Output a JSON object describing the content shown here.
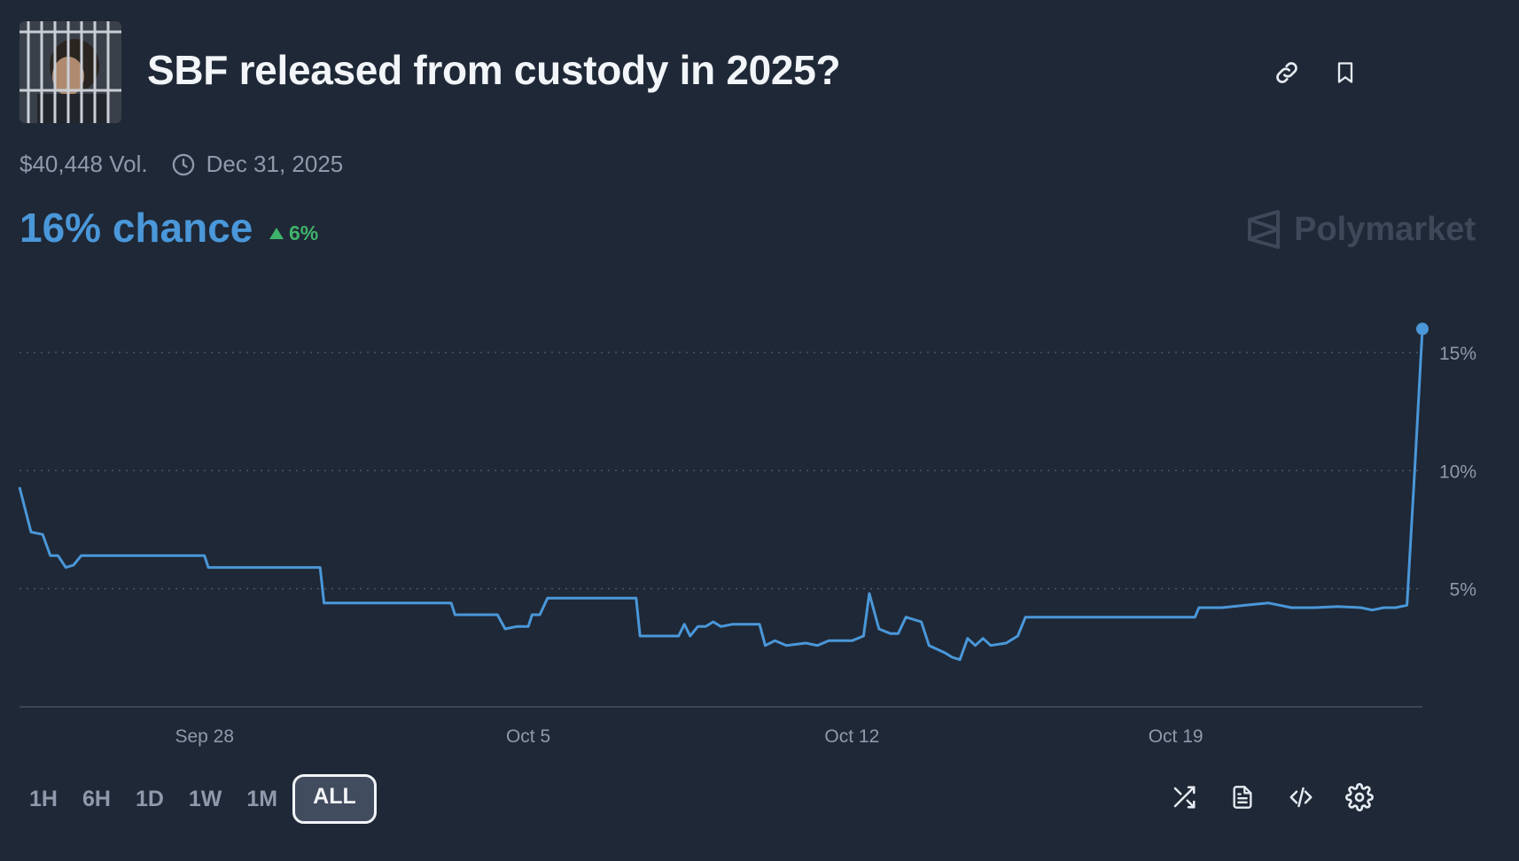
{
  "market": {
    "title": "SBF released from custody in 2025?",
    "volume": "$40,448 Vol.",
    "end_date": "Dec 31, 2025",
    "chance": "16% chance",
    "change": "6%",
    "brand": "Polymarket"
  },
  "icons": {
    "link": "link-icon",
    "bookmark": "bookmark-icon",
    "clock": "clock-icon",
    "shuffle": "shuffle-icon",
    "document": "document-icon",
    "embed": "code-icon",
    "settings": "gear-icon"
  },
  "colors": {
    "background": "#1f2836",
    "line": "#4a97d9",
    "positive": "#3fb36a",
    "muted": "#8e9aab"
  },
  "ranges": [
    {
      "label": "1H",
      "active": false
    },
    {
      "label": "6H",
      "active": false
    },
    {
      "label": "1D",
      "active": false
    },
    {
      "label": "1W",
      "active": false
    },
    {
      "label": "1M",
      "active": false
    },
    {
      "label": "ALL",
      "active": true
    }
  ],
  "chart_data": {
    "type": "line",
    "grid": true,
    "ylim": [
      0,
      17
    ],
    "y_ticks": [
      5,
      10,
      15
    ],
    "y_tick_labels": [
      "5%",
      "10%",
      "15%"
    ],
    "x_tick_labels": [
      {
        "date": "2025-09-28",
        "label": "Sep 28"
      },
      {
        "date": "2025-10-05",
        "label": "Oct 5"
      },
      {
        "date": "2025-10-12",
        "label": "Oct 12"
      },
      {
        "date": "2025-10-19",
        "label": "Oct 19"
      }
    ],
    "series": [
      {
        "points": [
          [
            "2025-09-24T00:00",
            9.3
          ],
          [
            "2025-09-24T06:00",
            7.4
          ],
          [
            "2025-09-24T12:00",
            7.3
          ],
          [
            "2025-09-24T16:00",
            6.4
          ],
          [
            "2025-09-24T20:00",
            6.4
          ],
          [
            "2025-09-25T00:00",
            5.9
          ],
          [
            "2025-09-25T04:00",
            6.0
          ],
          [
            "2025-09-25T08:00",
            6.4
          ],
          [
            "2025-09-26T00:00",
            6.4
          ],
          [
            "2025-09-27T00:00",
            6.4
          ],
          [
            "2025-09-28T00:00",
            6.4
          ],
          [
            "2025-09-28T02:00",
            5.9
          ],
          [
            "2025-09-29T00:00",
            5.9
          ],
          [
            "2025-09-30T12:00",
            5.9
          ],
          [
            "2025-09-30T14:00",
            4.4
          ],
          [
            "2025-10-01T12:00",
            4.4
          ],
          [
            "2025-10-02T12:00",
            4.4
          ],
          [
            "2025-10-03T08:00",
            4.4
          ],
          [
            "2025-10-03T10:00",
            3.9
          ],
          [
            "2025-10-04T08:00",
            3.9
          ],
          [
            "2025-10-04T12:00",
            3.3
          ],
          [
            "2025-10-04T18:00",
            3.4
          ],
          [
            "2025-10-05T00:00",
            3.4
          ],
          [
            "2025-10-05T02:00",
            3.9
          ],
          [
            "2025-10-05T06:00",
            3.9
          ],
          [
            "2025-10-05T10:00",
            4.6
          ],
          [
            "2025-10-06T12:00",
            4.6
          ],
          [
            "2025-10-07T08:00",
            4.6
          ],
          [
            "2025-10-07T10:00",
            3.0
          ],
          [
            "2025-10-08T06:00",
            3.0
          ],
          [
            "2025-10-08T09:00",
            3.5
          ],
          [
            "2025-10-08T12:00",
            3.0
          ],
          [
            "2025-10-08T16:00",
            3.4
          ],
          [
            "2025-10-08T20:00",
            3.4
          ],
          [
            "2025-10-09T00:00",
            3.6
          ],
          [
            "2025-10-09T04:00",
            3.4
          ],
          [
            "2025-10-09T10:00",
            3.5
          ],
          [
            "2025-10-09T16:00",
            3.5
          ],
          [
            "2025-10-10T00:00",
            3.5
          ],
          [
            "2025-10-10T03:00",
            2.6
          ],
          [
            "2025-10-10T08:00",
            2.8
          ],
          [
            "2025-10-10T14:00",
            2.6
          ],
          [
            "2025-10-11T00:00",
            2.7
          ],
          [
            "2025-10-11T06:00",
            2.6
          ],
          [
            "2025-10-11T12:00",
            2.8
          ],
          [
            "2025-10-11T18:00",
            2.8
          ],
          [
            "2025-10-12T00:00",
            2.8
          ],
          [
            "2025-10-12T06:00",
            3.0
          ],
          [
            "2025-10-12T09:00",
            4.8
          ],
          [
            "2025-10-12T14:00",
            3.3
          ],
          [
            "2025-10-12T20:00",
            3.1
          ],
          [
            "2025-10-13T00:00",
            3.1
          ],
          [
            "2025-10-13T04:00",
            3.8
          ],
          [
            "2025-10-13T12:00",
            3.6
          ],
          [
            "2025-10-13T16:00",
            2.6
          ],
          [
            "2025-10-14T00:00",
            2.3
          ],
          [
            "2025-10-14T04:00",
            2.1
          ],
          [
            "2025-10-14T08:00",
            2.0
          ],
          [
            "2025-10-14T12:00",
            2.9
          ],
          [
            "2025-10-14T16:00",
            2.6
          ],
          [
            "2025-10-14T20:00",
            2.9
          ],
          [
            "2025-10-15T00:00",
            2.6
          ],
          [
            "2025-10-15T08:00",
            2.7
          ],
          [
            "2025-10-15T14:00",
            3.0
          ],
          [
            "2025-10-15T18:00",
            3.8
          ],
          [
            "2025-10-16T12:00",
            3.8
          ],
          [
            "2025-10-17T12:00",
            3.8
          ],
          [
            "2025-10-18T12:00",
            3.8
          ],
          [
            "2025-10-19T10:00",
            3.8
          ],
          [
            "2025-10-19T12:00",
            4.2
          ],
          [
            "2025-10-20T00:00",
            4.2
          ],
          [
            "2025-10-20T12:00",
            4.3
          ],
          [
            "2025-10-21T00:00",
            4.4
          ],
          [
            "2025-10-21T06:00",
            4.3
          ],
          [
            "2025-10-21T12:00",
            4.2
          ],
          [
            "2025-10-22T00:00",
            4.2
          ],
          [
            "2025-10-22T12:00",
            4.25
          ],
          [
            "2025-10-23T00:00",
            4.2
          ],
          [
            "2025-10-23T06:00",
            4.1
          ],
          [
            "2025-10-23T12:00",
            4.2
          ],
          [
            "2025-10-23T18:00",
            4.2
          ],
          [
            "2025-10-24T00:00",
            4.3
          ],
          [
            "2025-10-24T04:00",
            10.0
          ],
          [
            "2025-10-24T08:00",
            16.0
          ]
        ]
      }
    ]
  }
}
